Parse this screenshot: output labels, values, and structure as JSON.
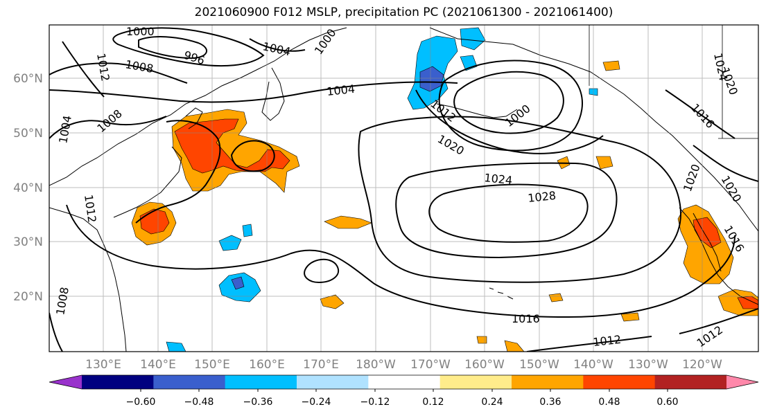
{
  "title": "2021060900 F012 MSLP, precipitation PC (2021061300 - 2021061400)",
  "lat_labels": [
    "60°N",
    "50°N",
    "40°N",
    "30°N",
    "20°N"
  ],
  "lon_labels": [
    "130°E",
    "140°E",
    "150°E",
    "160°E",
    "170°E",
    "180°W",
    "170°W",
    "160°W",
    "150°W",
    "140°W",
    "130°W",
    "120°W"
  ],
  "isobar_labels": [
    "1000",
    "996",
    "1004",
    "1000",
    "1012",
    "1008",
    "1004",
    "1024",
    "1020",
    "1008",
    "1004",
    "1012",
    "1000",
    "1016",
    "1020",
    "1020",
    "1024",
    "1028",
    "1020",
    "1016",
    "1012",
    "1016",
    "1008",
    "1012",
    "1012"
  ],
  "colorbar": {
    "ticks": [
      "−0.60",
      "−0.48",
      "−0.36",
      "−0.24",
      "−0.12",
      "0.12",
      "0.24",
      "0.36",
      "0.48",
      "0.60"
    ],
    "colors": [
      "#9932CC",
      "#000080",
      "#3A5FCD",
      "#00BFFF",
      "#B0E2FF",
      "#FFFFFF",
      "#FFEC8B",
      "#FFA500",
      "#FF4500",
      "#B22222",
      "#FF88AA"
    ]
  }
}
